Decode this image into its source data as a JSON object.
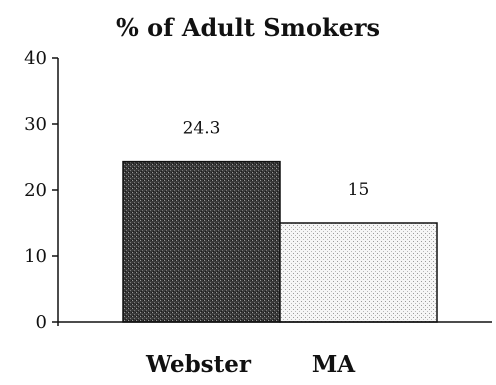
{
  "chart_data": {
    "type": "bar",
    "title": "% of Adult Smokers",
    "xlabel": "",
    "ylabel": "",
    "categories": [
      "Webster",
      "MA"
    ],
    "values": [
      24.3,
      15
    ],
    "data_labels": [
      "24.3",
      "15"
    ],
    "ylim": [
      0,
      40
    ],
    "yticks": [
      0,
      10,
      20,
      30,
      40
    ],
    "grid": false,
    "legend": "none",
    "bar_fills": [
      "dark-stipple",
      "light-stipple"
    ],
    "colors": {
      "dark_bar": "#2f2f2f",
      "light_bar": "#eeeeee",
      "axis": "#111111"
    }
  }
}
